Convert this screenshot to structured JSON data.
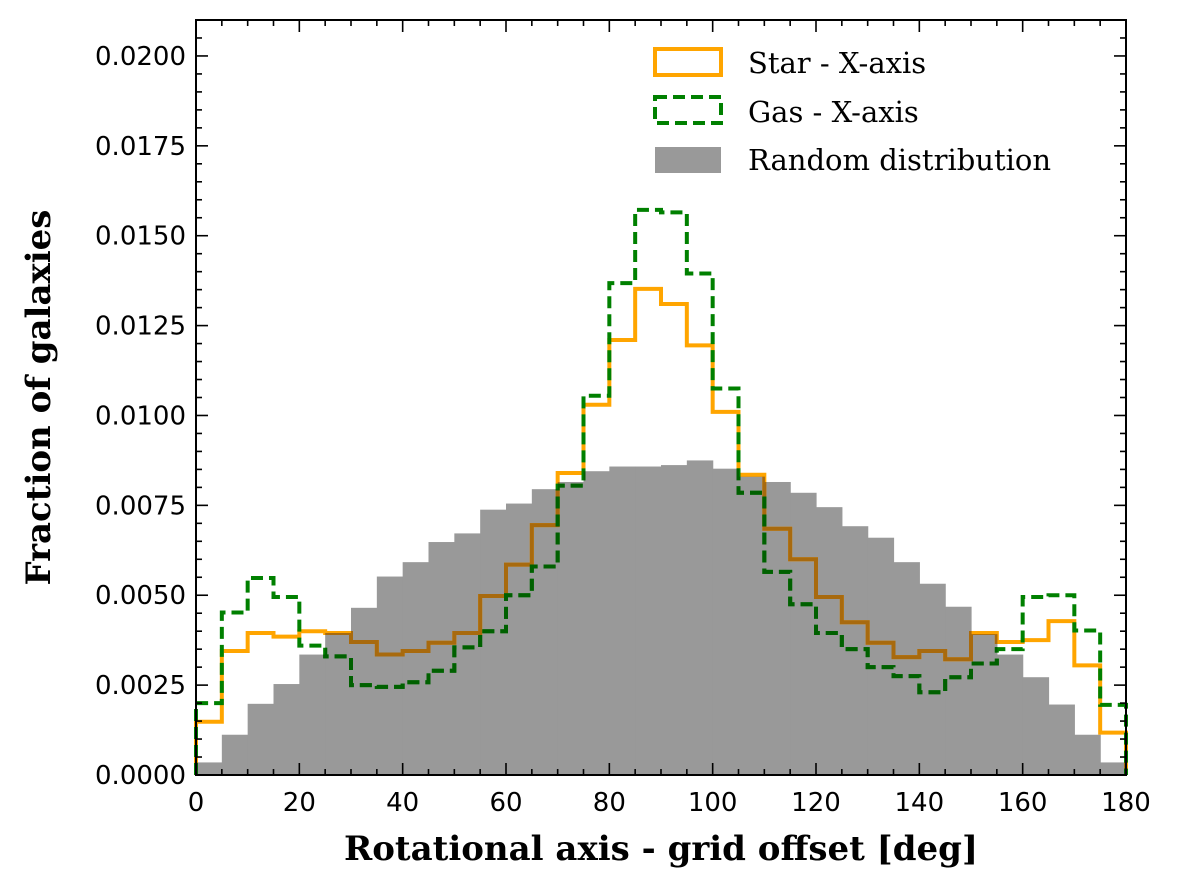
{
  "chart_data": {
    "type": "histogram",
    "title": "",
    "xlabel": "Rotational axis - grid offset [deg]",
    "ylabel": "Fraction of galaxies",
    "xlim": [
      0,
      180
    ],
    "ylim": [
      0,
      0.021
    ],
    "bin_width": 5,
    "bin_edges": [
      0,
      5,
      10,
      15,
      20,
      25,
      30,
      35,
      40,
      45,
      50,
      55,
      60,
      65,
      70,
      75,
      80,
      85,
      90,
      95,
      100,
      105,
      110,
      115,
      120,
      125,
      130,
      135,
      140,
      145,
      150,
      155,
      160,
      165,
      170,
      175,
      180
    ],
    "x_ticks": [
      0,
      20,
      40,
      60,
      80,
      100,
      120,
      140,
      160,
      180
    ],
    "x_tick_labels": [
      "0",
      "20",
      "40",
      "60",
      "80",
      "100",
      "120",
      "140",
      "160",
      "180"
    ],
    "y_ticks": [
      0,
      0.0025,
      0.005,
      0.0075,
      0.01,
      0.0125,
      0.015,
      0.0175,
      0.02
    ],
    "y_tick_labels": [
      "0.0000",
      "0.0025",
      "0.0050",
      "0.0075",
      "0.0100",
      "0.0125",
      "0.0150",
      "0.0175",
      "0.0200"
    ],
    "grid": false,
    "legend_position": "top-right",
    "series": [
      {
        "name": "Random distribution",
        "style": "filled",
        "color": "#999999",
        "values": [
          0.00035,
          0.00112,
          0.00198,
          0.00253,
          0.00335,
          0.00395,
          0.00465,
          0.00552,
          0.00592,
          0.00648,
          0.00672,
          0.00738,
          0.00755,
          0.00795,
          0.00815,
          0.00845,
          0.00858,
          0.00858,
          0.00862,
          0.00875,
          0.00852,
          0.0083,
          0.00815,
          0.00785,
          0.00745,
          0.00692,
          0.0066,
          0.00592,
          0.00532,
          0.00468,
          0.00392,
          0.00335,
          0.00272,
          0.00196,
          0.00112,
          0.00035
        ]
      },
      {
        "name": "Star - X-axis",
        "style": "step-solid",
        "color": "#FFA500",
        "values": [
          0.00148,
          0.00345,
          0.00395,
          0.00385,
          0.004,
          0.00395,
          0.0037,
          0.00335,
          0.00345,
          0.00368,
          0.00395,
          0.00498,
          0.00585,
          0.00695,
          0.0084,
          0.0103,
          0.0121,
          0.01352,
          0.0131,
          0.01195,
          0.0101,
          0.00835,
          0.00685,
          0.006,
          0.00495,
          0.00425,
          0.00368,
          0.00328,
          0.00345,
          0.00322,
          0.00395,
          0.0037,
          0.00375,
          0.00428,
          0.00305,
          0.00118
        ]
      },
      {
        "name": "Gas - X-axis",
        "style": "step-dashed",
        "color": "#008000",
        "values": [
          0.002,
          0.00452,
          0.00548,
          0.00495,
          0.0036,
          0.0033,
          0.0025,
          0.00245,
          0.00258,
          0.0029,
          0.00355,
          0.004,
          0.005,
          0.0058,
          0.00805,
          0.01055,
          0.01368,
          0.01572,
          0.01565,
          0.01395,
          0.01075,
          0.00785,
          0.00565,
          0.00475,
          0.00395,
          0.0035,
          0.003,
          0.00275,
          0.0023,
          0.00272,
          0.0031,
          0.0035,
          0.00495,
          0.005,
          0.00402,
          0.00195
        ]
      }
    ]
  },
  "colors": {
    "random": "#999999",
    "star": "#FFA500",
    "gas": "#008000",
    "overlap_star": "#A86A0E",
    "overlap_gas": "#006000"
  }
}
